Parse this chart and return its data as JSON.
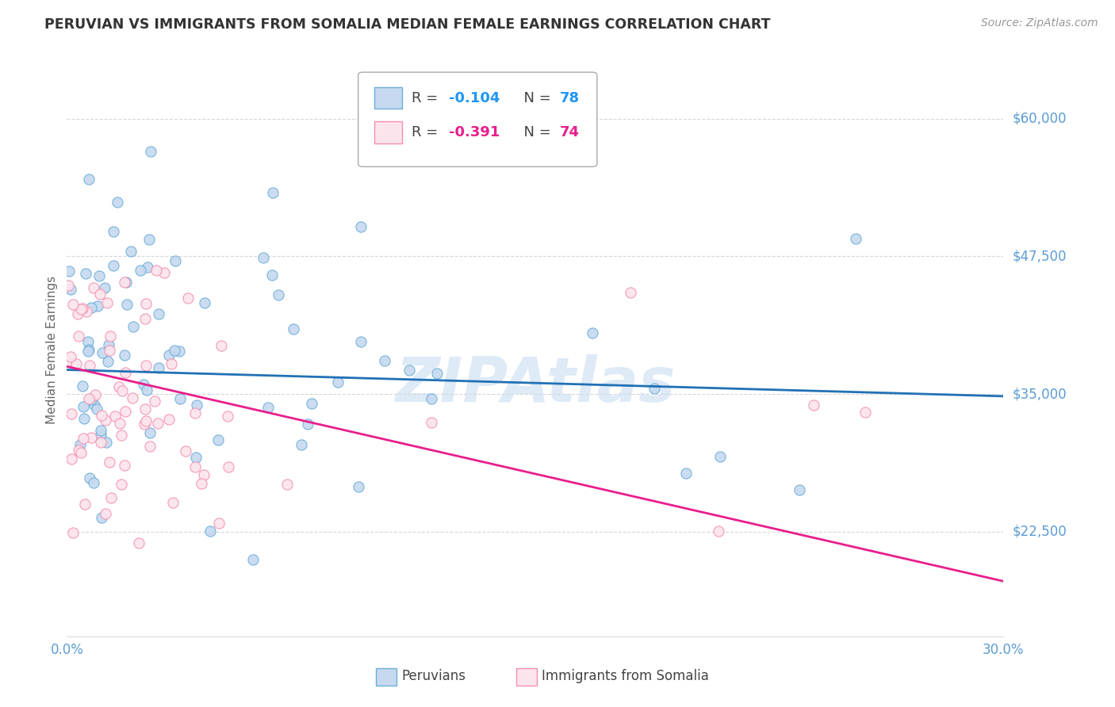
{
  "title": "PERUVIAN VS IMMIGRANTS FROM SOMALIA MEDIAN FEMALE EARNINGS CORRELATION CHART",
  "source": "Source: ZipAtlas.com",
  "ylabel": "Median Female Earnings",
  "watermark": "ZIPAtlas",
  "xlim": [
    0.0,
    0.3
  ],
  "ylim": [
    13000,
    65000
  ],
  "ytick_values": [
    22500,
    35000,
    47500,
    60000
  ],
  "ytick_labels": [
    "$22,500",
    "$35,000",
    "$47,500",
    "$60,000"
  ],
  "legend_blue_label": "Peruvians",
  "legend_pink_label": "Immigrants from Somalia",
  "blue_scatter_fill": "#c6d9f0",
  "blue_scatter_edge": "#6baed6",
  "pink_scatter_fill": "#fce4ec",
  "pink_scatter_edge": "#f48fb1",
  "blue_line_color": "#2171b5",
  "pink_line_color": "#e91e8c",
  "blue_r": -0.104,
  "pink_r": -0.391,
  "blue_n": 78,
  "pink_n": 74,
  "blue_trend_x": [
    0.0,
    0.3
  ],
  "blue_trend_y": [
    37200,
    34800
  ],
  "pink_trend_x": [
    0.0,
    0.3
  ],
  "pink_trend_y": [
    37500,
    18000
  ],
  "background_color": "#ffffff",
  "grid_color": "#cccccc",
  "title_color": "#333333",
  "ylabel_color": "#666666",
  "tick_color": "#5b9bd5",
  "watermark_color": "#c8dcf0",
  "source_color": "#999999",
  "legend_r_color_blue": "#2196f3",
  "legend_r_color_pink": "#e91e8c",
  "legend_n_color_blue": "#2196f3",
  "legend_n_color_pink": "#e91e8c",
  "legend_text_color": "#444444"
}
